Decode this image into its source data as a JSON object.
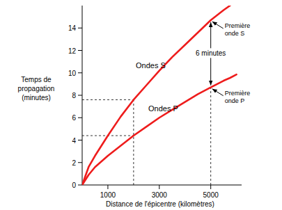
{
  "chart_data": {
    "type": "line",
    "x_label": "Distance de l'épicentre (kilomètres)",
    "y_label": [
      "Temps de",
      "propagation",
      "(minutes)"
    ],
    "x": [
      0,
      250,
      500,
      1000,
      1500,
      2000,
      2500,
      3000,
      3500,
      4000,
      4500,
      5000,
      5500,
      5750,
      6000
    ],
    "series": [
      {
        "name": "Ondes S",
        "color": "#ee1c1c",
        "values": [
          0,
          1.6,
          2.6,
          4.4,
          6.1,
          7.6,
          8.9,
          10.2,
          11.4,
          12.5,
          13.6,
          14.7,
          15.6,
          16.0,
          null
        ]
      },
      {
        "name": "Ondes P",
        "color": "#ee1c1c",
        "values": [
          0,
          0.9,
          1.6,
          2.6,
          3.5,
          4.4,
          5.2,
          6.0,
          6.7,
          7.4,
          8.1,
          8.7,
          9.3,
          9.55,
          9.85
        ]
      }
    ],
    "xlim": [
      0,
      6200
    ],
    "ylim": [
      0,
      16
    ],
    "xticks": [
      1000,
      3000,
      5000
    ],
    "yticks": [
      0,
      2,
      4,
      6,
      8,
      10,
      12,
      14
    ],
    "grid": false,
    "annotations": [
      {
        "text": [
          "Première",
          "onde S"
        ],
        "x": 5000,
        "y": 14.7
      },
      {
        "text": [
          "Première",
          "onde P"
        ],
        "x": 5000,
        "y": 8.7
      },
      {
        "text": [
          "6 minutes"
        ],
        "x": 5000,
        "y": [
          8.7,
          14.7
        ]
      }
    ],
    "dashed_lines": [
      [
        [
          2000,
          0
        ],
        [
          2000,
          7.6
        ]
      ],
      [
        [
          0,
          7.6
        ],
        [
          2000,
          7.6
        ]
      ],
      [
        [
          0,
          4.4
        ],
        [
          2000,
          4.4
        ]
      ],
      [
        [
          5000,
          0
        ],
        [
          5000,
          8.7
        ]
      ]
    ]
  }
}
